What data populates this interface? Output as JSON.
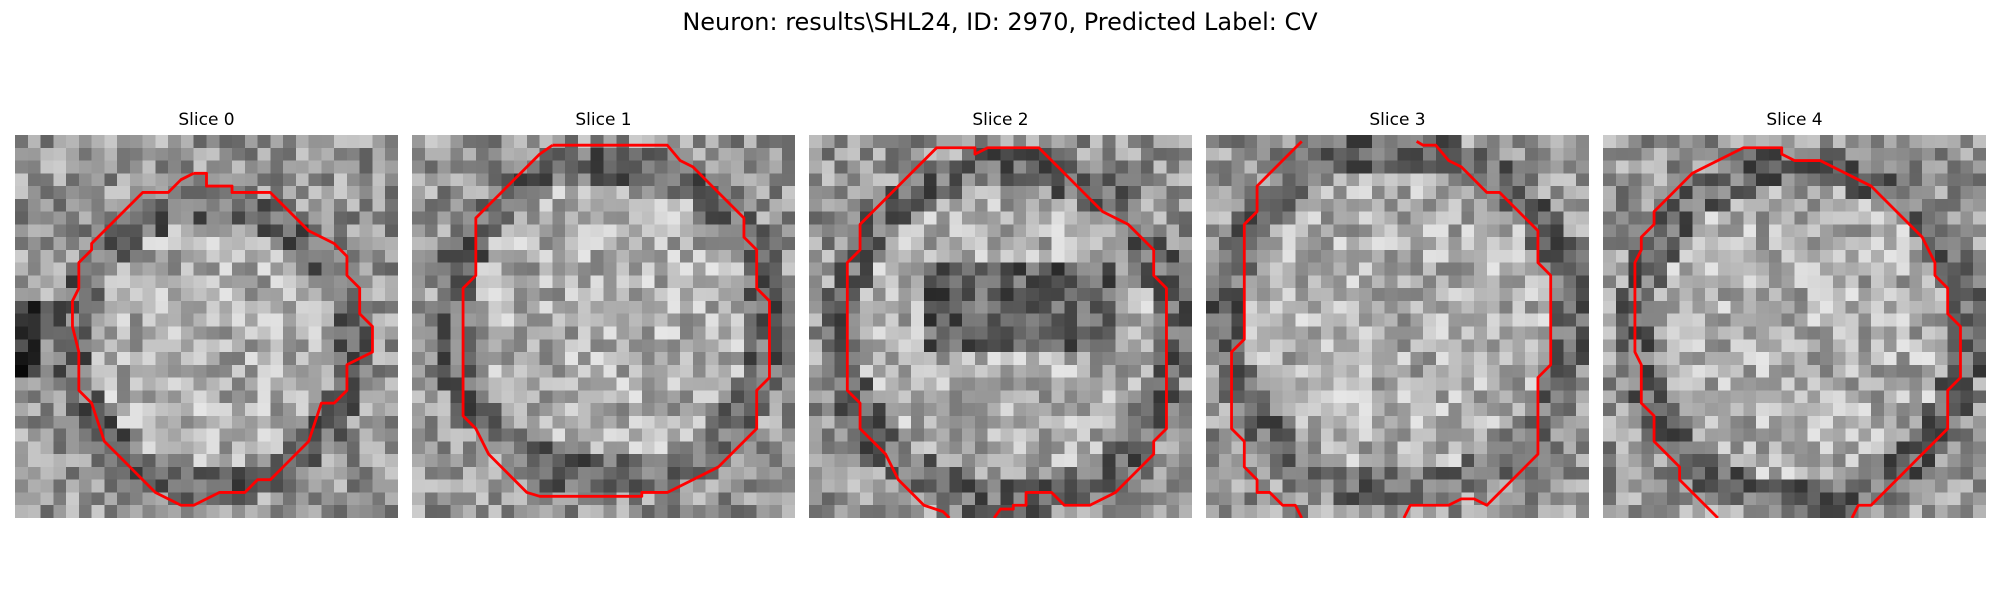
{
  "figure": {
    "title": "Neuron: results\\SHL24, ID: 2970, Predicted Label: CV"
  },
  "panels": [
    {
      "title": "Slice 0"
    },
    {
      "title": "Slice 1"
    },
    {
      "title": "Slice 2"
    },
    {
      "title": "Slice 3"
    },
    {
      "title": "Slice 4"
    }
  ],
  "colors": {
    "background": "#ffffff",
    "contour": "#ff0000",
    "colormap": "gray"
  }
}
